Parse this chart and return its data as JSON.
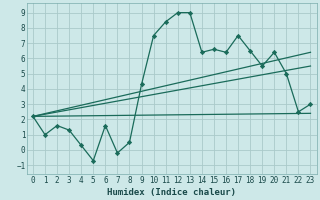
{
  "xlabel": "Humidex (Indice chaleur)",
  "bg_color": "#cde8e8",
  "grid_color": "#aacaca",
  "line_color": "#1a6b5a",
  "xlim": [
    -0.5,
    23.5
  ],
  "ylim": [
    -1.6,
    9.6
  ],
  "xticks": [
    0,
    1,
    2,
    3,
    4,
    5,
    6,
    7,
    8,
    9,
    10,
    11,
    12,
    13,
    14,
    15,
    16,
    17,
    18,
    19,
    20,
    21,
    22,
    23
  ],
  "yticks": [
    -1,
    0,
    1,
    2,
    3,
    4,
    5,
    6,
    7,
    8,
    9
  ],
  "series1_x": [
    0,
    1,
    2,
    3,
    4,
    5,
    6,
    7,
    8,
    9,
    10,
    11,
    12,
    13,
    14,
    15,
    16,
    17,
    18,
    19,
    20,
    21,
    22,
    23
  ],
  "series1_y": [
    2.2,
    1.0,
    1.6,
    1.3,
    0.3,
    -0.7,
    1.6,
    -0.2,
    0.5,
    4.3,
    7.5,
    8.4,
    9.0,
    9.0,
    6.4,
    6.6,
    6.4,
    7.5,
    6.5,
    5.5,
    6.4,
    5.0,
    2.5,
    3.0
  ],
  "series2_x": [
    0,
    23
  ],
  "series2_y": [
    2.2,
    2.4
  ],
  "series3_x": [
    0,
    23
  ],
  "series3_y": [
    2.2,
    5.5
  ],
  "series4_x": [
    0,
    23
  ],
  "series4_y": [
    2.2,
    6.4
  ],
  "tick_fontsize": 5.5,
  "xlabel_fontsize": 6.5,
  "tick_color": "#1a4a4a",
  "xlabel_color": "#1a4a4a"
}
